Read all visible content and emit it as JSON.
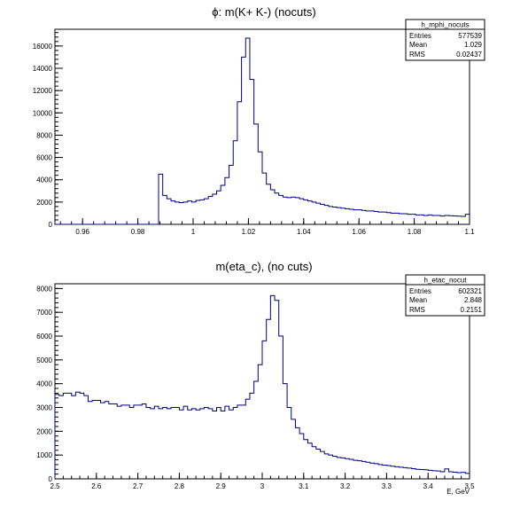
{
  "chart_data": [
    {
      "type": "histogram",
      "title": "ϕ: m(K+ K-) (nocuts)",
      "xlabel": "",
      "ylabel": "",
      "xlim": [
        0.95,
        1.1
      ],
      "ylim": [
        0,
        17500
      ],
      "xticks": [
        0.96,
        0.98,
        1,
        1.02,
        1.04,
        1.06,
        1.08,
        1.1
      ],
      "xtick_labels": [
        "0.96",
        "0.98",
        "1",
        "1.02",
        "1.04",
        "1.06",
        "1.08",
        "1.1"
      ],
      "yticks": [
        0,
        2000,
        4000,
        6000,
        8000,
        10000,
        12000,
        14000,
        16000
      ],
      "ytick_labels": [
        "0",
        "2000",
        "4000",
        "6000",
        "8000",
        "10000",
        "12000",
        "14000",
        "16000"
      ],
      "stats": {
        "name": "h_mphi_nocuts",
        "rows": [
          {
            "label": "Entries",
            "value": "577539"
          },
          {
            "label": "Mean",
            "value": "1.029"
          },
          {
            "label": "RMS",
            "value": "0.02437"
          }
        ]
      },
      "bins": {
        "x_start": 0.95,
        "bin_width": 0.0015,
        "values": [
          0,
          0,
          0,
          0,
          0,
          0,
          0,
          0,
          0,
          0,
          0,
          0,
          0,
          0,
          0,
          0,
          0,
          0,
          0,
          0,
          0,
          0,
          0,
          0,
          0,
          4500,
          2600,
          2300,
          2100,
          2000,
          1950,
          2000,
          2100,
          2000,
          2150,
          2200,
          2300,
          2500,
          2700,
          3000,
          3500,
          4200,
          5300,
          7500,
          11000,
          15000,
          16700,
          13000,
          9000,
          6500,
          4600,
          3600,
          3100,
          2800,
          2600,
          2450,
          2400,
          2450,
          2400,
          2300,
          2200,
          2100,
          2000,
          1900,
          1800,
          1700,
          1600,
          1550,
          1500,
          1450,
          1400,
          1350,
          1300,
          1300,
          1250,
          1200,
          1200,
          1150,
          1100,
          1100,
          1050,
          1000,
          1000,
          950,
          950,
          900,
          900,
          850,
          850,
          800,
          850,
          800,
          800,
          750,
          800,
          780,
          760,
          740,
          720,
          900
        ]
      }
    },
    {
      "type": "histogram",
      "title": "m(eta_c), (no cuts)",
      "xlabel": "E, GeV",
      "ylabel": "",
      "xlim": [
        2.5,
        3.5
      ],
      "ylim": [
        0,
        8200
      ],
      "xticks": [
        2.5,
        2.6,
        2.7,
        2.8,
        2.9,
        3,
        3.1,
        3.2,
        3.3,
        3.4,
        3.5
      ],
      "xtick_labels": [
        "2.5",
        "2.6",
        "2.7",
        "2.8",
        "2.9",
        "3",
        "3.1",
        "3.2",
        "3.3",
        "3.4",
        "3.5"
      ],
      "yticks": [
        0,
        1000,
        2000,
        3000,
        4000,
        5000,
        6000,
        7000,
        8000
      ],
      "ytick_labels": [
        "0",
        "1000",
        "2000",
        "3000",
        "4000",
        "5000",
        "6000",
        "7000",
        "8000"
      ],
      "stats": {
        "name": "h_etac_nocut",
        "rows": [
          {
            "label": "Entries",
            "value": "602321"
          },
          {
            "label": "Mean",
            "value": "2.848"
          },
          {
            "label": "RMS",
            "value": "0.2151"
          }
        ]
      },
      "bins": {
        "x_start": 2.5,
        "bin_width": 0.01,
        "values": [
          3550,
          3500,
          3600,
          3600,
          3500,
          3650,
          3600,
          3500,
          3250,
          3300,
          3300,
          3200,
          3250,
          3150,
          3150,
          3050,
          3100,
          3100,
          3000,
          3100,
          3100,
          3150,
          3000,
          2950,
          3050,
          2950,
          3000,
          2950,
          3000,
          3000,
          2900,
          3050,
          2900,
          2950,
          2900,
          2950,
          3000,
          2950,
          2850,
          3000,
          2850,
          3050,
          2900,
          3000,
          3100,
          3100,
          3350,
          3600,
          4100,
          4800,
          5800,
          6700,
          7700,
          7500,
          6000,
          4000,
          3000,
          2500,
          2150,
          1900,
          1650,
          1500,
          1350,
          1250,
          1150,
          1050,
          1000,
          950,
          900,
          880,
          850,
          820,
          780,
          760,
          730,
          700,
          660,
          640,
          600,
          580,
          560,
          530,
          510,
          490,
          470,
          450,
          430,
          400,
          390,
          380,
          360,
          340,
          330,
          300,
          420,
          300,
          280,
          260,
          270,
          230
        ]
      }
    }
  ]
}
